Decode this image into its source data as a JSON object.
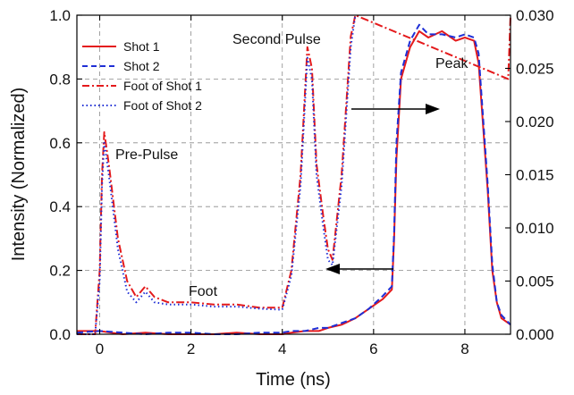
{
  "chart_data": {
    "type": "line",
    "xlabel": "Time (ns)",
    "ylabel": "Intensity (Normalized)",
    "xlim": [
      -0.5,
      9.0
    ],
    "ylim": [
      0.0,
      1.0
    ],
    "y2lim": [
      0.0,
      0.03
    ],
    "x_ticks": [
      0,
      2,
      4,
      6,
      8
    ],
    "y_ticks": [
      0.0,
      0.2,
      0.4,
      0.6,
      0.8,
      1.0
    ],
    "y2_ticks": [
      0.0,
      0.005,
      0.01,
      0.015,
      0.02,
      0.025,
      0.03
    ],
    "x_tick_labels": [
      "0",
      "2",
      "4",
      "6",
      "8"
    ],
    "y_tick_labels": [
      "0.0",
      "0.2",
      "0.4",
      "0.6",
      "0.8",
      "1.0"
    ],
    "y2_tick_labels": [
      "0.000",
      "0.005",
      "0.010",
      "0.015",
      "0.020",
      "0.025",
      "0.030"
    ],
    "grid": true,
    "legend_position": "top-left",
    "annotations": [
      "Second Pulse",
      "Peak",
      "Pre-Pulse",
      "Foot"
    ],
    "series": [
      {
        "name": "Shot 1",
        "axis": "left",
        "color": "#e41a1c",
        "style": "solid",
        "x": [
          -0.5,
          0.0,
          0.5,
          1.0,
          1.5,
          2.0,
          2.5,
          3.0,
          3.5,
          4.0,
          4.2,
          4.5,
          4.8,
          5.0,
          5.3,
          5.6,
          5.9,
          6.2,
          6.4,
          6.45,
          6.5,
          6.6,
          6.8,
          7.0,
          7.2,
          7.5,
          7.8,
          8.0,
          8.2,
          8.3,
          8.5,
          8.6,
          8.7,
          8.8,
          9.0
        ],
        "y": [
          0.01,
          0.01,
          0.0,
          0.005,
          0.0,
          0.0,
          0.0,
          0.005,
          0.0,
          0.0,
          0.005,
          0.01,
          0.01,
          0.02,
          0.03,
          0.05,
          0.08,
          0.11,
          0.14,
          0.3,
          0.55,
          0.8,
          0.9,
          0.95,
          0.93,
          0.95,
          0.92,
          0.93,
          0.92,
          0.85,
          0.45,
          0.2,
          0.1,
          0.05,
          0.03
        ]
      },
      {
        "name": "Shot 2",
        "axis": "left",
        "color": "#1f2fd6",
        "style": "dashed",
        "x": [
          -0.5,
          0.0,
          0.5,
          1.0,
          1.5,
          2.0,
          2.5,
          3.0,
          3.5,
          4.0,
          4.2,
          4.5,
          4.8,
          5.0,
          5.3,
          5.6,
          5.9,
          6.2,
          6.4,
          6.45,
          6.5,
          6.6,
          6.8,
          7.0,
          7.2,
          7.5,
          7.8,
          8.0,
          8.2,
          8.3,
          8.5,
          8.6,
          8.7,
          8.8,
          9.0
        ],
        "y": [
          0.005,
          0.01,
          0.005,
          0.0,
          0.005,
          0.005,
          0.0,
          0.0,
          0.005,
          0.005,
          0.01,
          0.01,
          0.02,
          0.02,
          0.035,
          0.05,
          0.08,
          0.12,
          0.15,
          0.32,
          0.6,
          0.82,
          0.92,
          0.97,
          0.94,
          0.94,
          0.93,
          0.94,
          0.93,
          0.88,
          0.47,
          0.22,
          0.1,
          0.06,
          0.03
        ]
      },
      {
        "name": "Foot of Shot 1",
        "axis": "right",
        "color": "#e41a1c",
        "style": "dashdot",
        "x": [
          -0.5,
          -0.1,
          0.0,
          0.05,
          0.1,
          0.2,
          0.4,
          0.6,
          0.8,
          1.0,
          1.2,
          1.5,
          2.0,
          2.5,
          3.0,
          3.5,
          4.0,
          4.2,
          4.4,
          4.55,
          4.65,
          4.75,
          4.9,
          5.0,
          5.1,
          5.3,
          5.5,
          5.6,
          8.95,
          9.0
        ],
        "y": [
          0.0,
          0.0,
          0.006,
          0.015,
          0.019,
          0.016,
          0.009,
          0.005,
          0.0035,
          0.0045,
          0.0035,
          0.003,
          0.003,
          0.0028,
          0.0028,
          0.0025,
          0.0025,
          0.006,
          0.015,
          0.027,
          0.025,
          0.016,
          0.011,
          0.008,
          0.007,
          0.015,
          0.028,
          0.03,
          0.024,
          0.03
        ]
      },
      {
        "name": "Foot of Shot 2",
        "axis": "right",
        "color": "#1f2fd6",
        "style": "dotted",
        "x": [
          -0.5,
          -0.1,
          0.0,
          0.05,
          0.1,
          0.2,
          0.4,
          0.6,
          0.8,
          1.0,
          1.2,
          1.5,
          2.0,
          2.5,
          3.0,
          3.5,
          4.0,
          4.2,
          4.4,
          4.55,
          4.65,
          4.75,
          4.9,
          5.0,
          5.1,
          5.3,
          5.5,
          5.6
        ],
        "y": [
          0.0,
          0.0,
          0.005,
          0.014,
          0.018,
          0.015,
          0.008,
          0.004,
          0.003,
          0.004,
          0.003,
          0.0028,
          0.0028,
          0.0026,
          0.0026,
          0.0024,
          0.0023,
          0.0055,
          0.014,
          0.026,
          0.024,
          0.015,
          0.01,
          0.007,
          0.0065,
          0.014,
          0.027,
          0.03
        ]
      }
    ]
  }
}
